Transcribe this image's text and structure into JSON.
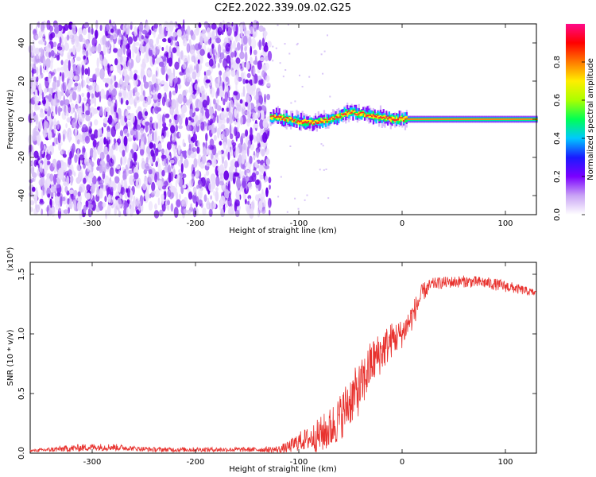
{
  "title": "C2E2.2022.339.09.02.G25",
  "chart_data": [
    {
      "type": "heatmap",
      "xlabel": "Height of straight line (km)",
      "ylabel": "Frequency (Hz)",
      "xlim": [
        -360,
        130
      ],
      "ylim": [
        -50,
        50
      ],
      "xticks": [
        -300,
        -200,
        -100,
        0,
        100
      ],
      "yticks": [
        -40,
        -20,
        0,
        20,
        40
      ],
      "noise_region_x": [
        -360,
        -128
      ],
      "signal_ridge": {
        "x": [
          -128,
          -120,
          -110,
          -100,
          -90,
          -80,
          -70,
          -60,
          -55,
          -50,
          -45,
          -40,
          -30,
          -20,
          -10,
          0,
          10,
          40,
          60,
          80,
          100,
          130
        ],
        "freq": [
          1,
          1,
          0,
          -1,
          -2,
          -1,
          0,
          2,
          3,
          4,
          3,
          3,
          2,
          1,
          0,
          0,
          0,
          0,
          0,
          0,
          0,
          0
        ]
      },
      "colorbar": {
        "label": "Normalized spectral amplitude",
        "range": [
          0,
          1
        ],
        "ticks": [
          "0.0",
          "0.2",
          "0.4",
          "0.6",
          "0.8"
        ],
        "colors": [
          "#ffffff",
          "#c9a3f5",
          "#7b00ff",
          "#1a1aff",
          "#00c8ff",
          "#00ff55",
          "#aaff00",
          "#ffee00",
          "#ff7a00",
          "#ff0000",
          "#ff0a8a"
        ]
      }
    },
    {
      "type": "line",
      "xlabel": "Height of straight line (km)",
      "ylabel": "SNR (10 * v/v)",
      "multiplier": "(x10⁴)",
      "xlim": [
        -360,
        130
      ],
      "ylim": [
        0,
        1.6
      ],
      "xticks": [
        -300,
        -200,
        -100,
        0,
        100
      ],
      "yticks": [
        "0.0",
        "0.5",
        "1.0",
        "1.5"
      ],
      "line_color": "#e8322e",
      "series": [
        {
          "x": [
            -360,
            -340,
            -320,
            -300,
            -280,
            -260,
            -240,
            -220,
            -200,
            -180,
            -160,
            -140,
            -120,
            -110,
            -100,
            -90,
            -80,
            -70,
            -60,
            -50,
            -40,
            -30,
            -20,
            -10,
            0,
            10,
            20,
            30,
            40,
            60,
            80,
            100,
            115,
            130
          ],
          "y": [
            0.02,
            0.03,
            0.04,
            0.05,
            0.05,
            0.04,
            0.03,
            0.03,
            0.03,
            0.03,
            0.03,
            0.03,
            0.03,
            0.05,
            0.1,
            0.12,
            0.15,
            0.2,
            0.3,
            0.45,
            0.55,
            0.75,
            0.85,
            0.95,
            1.0,
            1.15,
            1.35,
            1.42,
            1.43,
            1.44,
            1.43,
            1.4,
            1.37,
            1.34
          ],
          "spread": [
            0.01,
            0.02,
            0.03,
            0.03,
            0.03,
            0.02,
            0.02,
            0.02,
            0.02,
            0.02,
            0.02,
            0.02,
            0.03,
            0.05,
            0.08,
            0.1,
            0.15,
            0.18,
            0.2,
            0.22,
            0.22,
            0.2,
            0.18,
            0.15,
            0.12,
            0.12,
            0.08,
            0.05,
            0.05,
            0.05,
            0.05,
            0.05,
            0.04,
            0.03
          ]
        }
      ]
    }
  ]
}
